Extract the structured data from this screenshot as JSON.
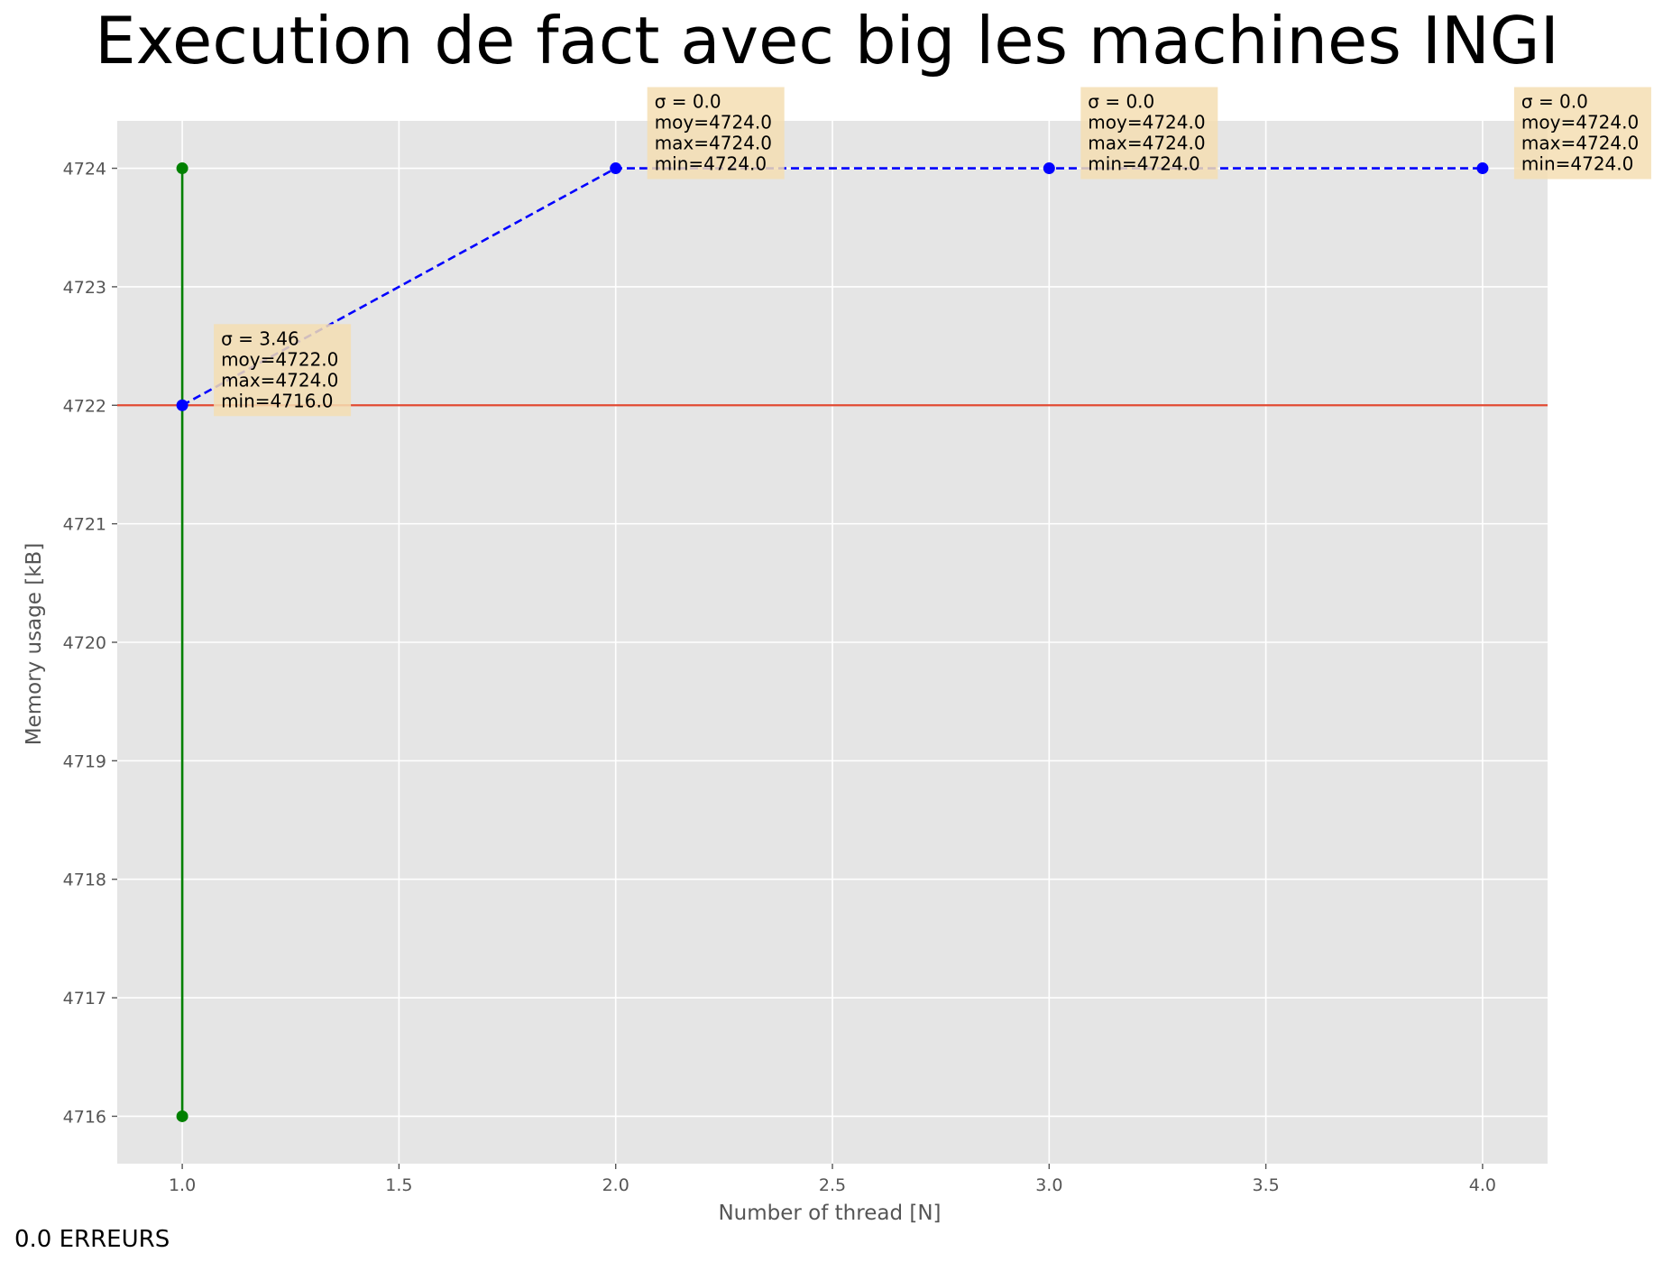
{
  "chart_data": {
    "type": "line",
    "title": "Execution de fact avec big les machines INGI",
    "xlabel": "Number of thread [N]",
    "ylabel": "Memory usage [kB]",
    "xlim": [
      0.85,
      4.15
    ],
    "ylim": [
      4715.6,
      4724.4
    ],
    "xticks": [
      1.0,
      1.5,
      2.0,
      2.5,
      3.0,
      3.5,
      4.0
    ],
    "xtick_labels": [
      "1.0",
      "1.5",
      "2.0",
      "2.5",
      "3.0",
      "3.5",
      "4.0"
    ],
    "yticks": [
      4716,
      4717,
      4718,
      4719,
      4720,
      4721,
      4722,
      4723,
      4724
    ],
    "ytick_labels": [
      "4716",
      "4717",
      "4718",
      "4719",
      "4720",
      "4721",
      "4722",
      "4723",
      "4724"
    ],
    "grid": true,
    "series": [
      {
        "style": "dashed",
        "color": "#0000ff",
        "x": [
          1,
          2,
          3,
          4
        ],
        "y": [
          4722.0,
          4724.0,
          4724.0,
          4724.0
        ]
      }
    ],
    "range_bars": [
      {
        "x": 1,
        "min": 4716.0,
        "max": 4724.0,
        "color": "#008000"
      }
    ],
    "hline": {
      "y": 4722.0,
      "color": "#e24a33"
    },
    "annotations": [
      {
        "x": 1,
        "y": 4722.0,
        "lines": [
          "σ = 3.46",
          "moy=4722.0",
          "max=4724.0",
          "min=4716.0"
        ]
      },
      {
        "x": 2,
        "y": 4724.0,
        "lines": [
          "σ = 0.0",
          "moy=4724.0",
          "max=4724.0",
          "min=4724.0"
        ]
      },
      {
        "x": 3,
        "y": 4724.0,
        "lines": [
          "σ = 0.0",
          "moy=4724.0",
          "max=4724.0",
          "min=4724.0"
        ]
      },
      {
        "x": 4,
        "y": 4724.0,
        "lines": [
          "σ = 0.0",
          "moy=4724.0",
          "max=4724.0",
          "min=4724.0"
        ]
      }
    ],
    "colors": {
      "plot_bg": "#e5e5e5",
      "grid": "#ffffff",
      "annotation_bg": "#f5deb3"
    }
  },
  "footer": {
    "errors_text": "0.0 ERREURS"
  }
}
